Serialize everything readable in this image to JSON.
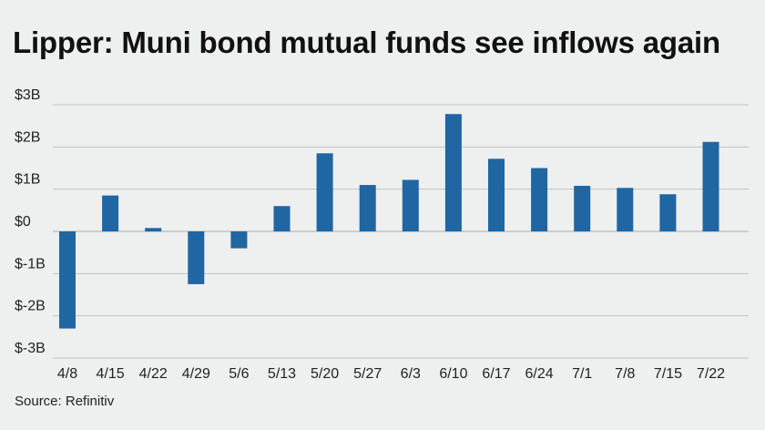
{
  "title": "Lipper: Muni bond mutual funds see inflows again",
  "source": "Source: Refinitiv",
  "chart_data": {
    "type": "bar",
    "title": "Lipper: Muni bond mutual funds see inflows again",
    "xlabel": "",
    "ylabel": "",
    "categories": [
      "4/8",
      "4/15",
      "4/22",
      "4/29",
      "5/6",
      "5/13",
      "5/20",
      "5/27",
      "6/3",
      "6/10",
      "6/17",
      "6/24",
      "7/1",
      "7/8",
      "7/15",
      "7/22"
    ],
    "values": [
      -2.3,
      0.85,
      0.08,
      -1.25,
      -0.4,
      0.6,
      1.85,
      1.1,
      1.22,
      2.78,
      1.72,
      1.5,
      1.08,
      1.03,
      0.88,
      2.12
    ],
    "ylim": [
      -3,
      3
    ],
    "yticks": [
      3,
      2,
      1,
      0,
      -1,
      -2,
      -3
    ],
    "ytick_labels": [
      "$3B",
      "$2B",
      "$1B",
      "$0",
      "$-1B",
      "$-2B",
      "$-3B"
    ],
    "grid": true,
    "bar_color": "#1f66a3",
    "grid_color": "#c2c2c2"
  }
}
